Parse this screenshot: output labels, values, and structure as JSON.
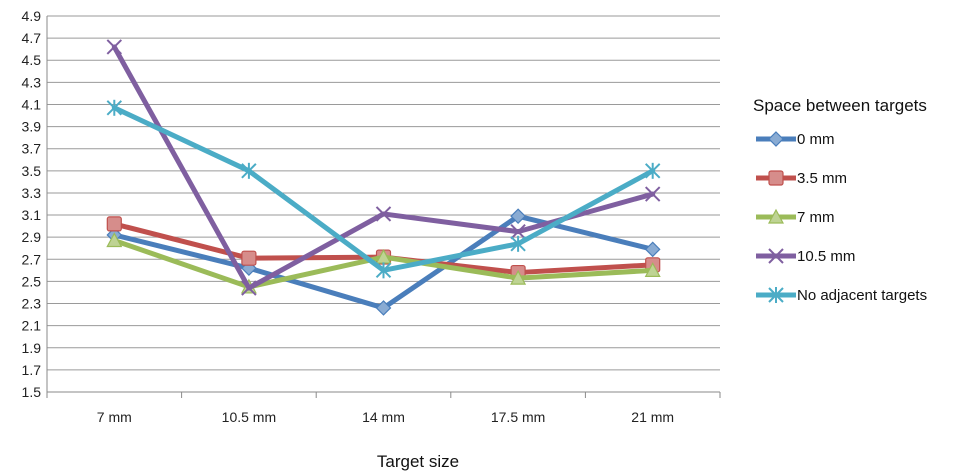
{
  "chart_data": {
    "type": "line",
    "xlabel": "Target size",
    "ylabel": "",
    "categories": [
      "7 mm",
      "10.5 mm",
      "14 mm",
      "17.5 mm",
      "21 mm"
    ],
    "ylim": [
      1.5,
      4.9
    ],
    "yticks": [
      1.5,
      1.7,
      1.9,
      2.1,
      2.3,
      2.5,
      2.7,
      2.9,
      3.1,
      3.3,
      3.5,
      3.7,
      3.9,
      4.1,
      4.3,
      4.5,
      4.7,
      4.9
    ],
    "ytick_labels": [
      "1.5",
      "1.7",
      "1.9",
      "2.1",
      "2.3",
      "2.5",
      "2.7",
      "2.9",
      "3.1",
      "3.3",
      "3.5",
      "3.7",
      "3.9",
      "4.1",
      "4.3",
      "4.5",
      "4.7",
      "4.9"
    ],
    "grid": true,
    "legend": {
      "title": "Space between targets",
      "position": "right"
    },
    "series": [
      {
        "name": "0 mm",
        "values": [
          2.92,
          2.62,
          2.26,
          3.09,
          2.79
        ],
        "color": "#4a7ebb",
        "marker": "diamond"
      },
      {
        "name": "3.5 mm",
        "values": [
          3.02,
          2.71,
          2.72,
          2.58,
          2.65
        ],
        "color": "#c0504d",
        "marker": "square"
      },
      {
        "name": "7 mm",
        "values": [
          2.87,
          2.45,
          2.72,
          2.53,
          2.6
        ],
        "color": "#9bbb59",
        "marker": "triangle"
      },
      {
        "name": "10.5 mm",
        "values": [
          4.62,
          2.44,
          3.11,
          2.95,
          3.29
        ],
        "color": "#7f5fa0",
        "marker": "x"
      },
      {
        "name": "No adjacent targets",
        "values": [
          4.07,
          3.5,
          2.6,
          2.84,
          3.5
        ],
        "color": "#4bacc6",
        "marker": "star"
      }
    ]
  }
}
